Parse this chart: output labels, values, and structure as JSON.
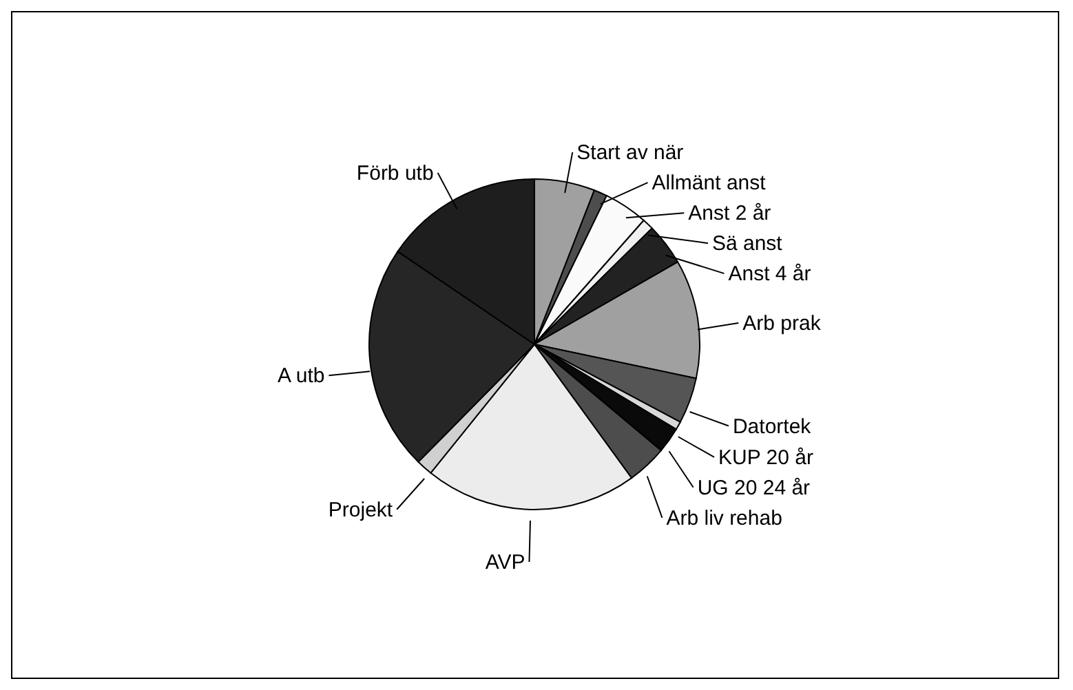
{
  "chart_data": {
    "type": "pie",
    "categories": [
      "Start av när",
      "Allmänt anst",
      "Anst 2 år",
      "Sä anst",
      "Anst 4 år",
      "Arb prak",
      "Datortek",
      "KUP 20 år",
      "UG 20 24 år",
      "Arb liv rehab",
      "AVP",
      "Projekt",
      "A utb",
      "Förb utb"
    ],
    "values": [
      5.9,
      1.3,
      4.3,
      1.1,
      4.1,
      11.6,
      4.5,
      0.8,
      2.5,
      3.9,
      20.8,
      1.6,
      22.1,
      15.5
    ],
    "colors": [
      "#a0a0a0",
      "#4d4d4d",
      "#fafafa",
      "#f0f0f0",
      "#222222",
      "#a0a0a0",
      "#555555",
      "#d8d8d8",
      "#0a0a0a",
      "#4d4d4d",
      "#ececec",
      "#d0d0d0",
      "#262626",
      "#1e1e1e"
    ],
    "legend": false
  }
}
